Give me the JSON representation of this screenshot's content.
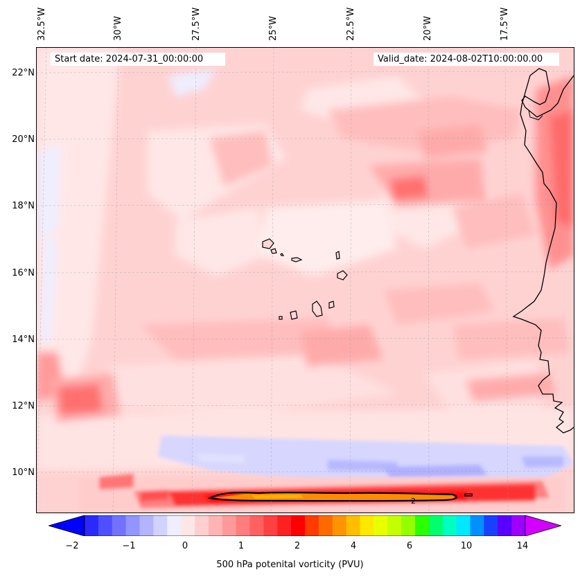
{
  "map": {
    "start_date": "Start date: 2024-07-31_00:00:00",
    "valid_date": "Valid_date: 2024-08-02T10:00:00.00",
    "longitude_labels": [
      "32.5°W",
      "30°W",
      "27.5°W",
      "25°W",
      "22.5°W",
      "20°W",
      "17.5°W"
    ],
    "latitude_labels": [
      "22°N",
      "20°N",
      "18°N",
      "16°N",
      "14°N",
      "12°N",
      "10°N"
    ],
    "contour_label": "2"
  },
  "colorbar": {
    "label": "500 hPa potenital vorticity (PVU)",
    "tick_labels": [
      "−2",
      "−1",
      "0",
      "1",
      "2",
      "4",
      "6",
      "10",
      "14"
    ],
    "colors": [
      "#0000ff",
      "#2a2aff",
      "#4f4fff",
      "#7272ff",
      "#9494ff",
      "#b3b3ff",
      "#d2d2ff",
      "#eeeeff",
      "#ffe6e6",
      "#ffcfcf",
      "#ffb4b4",
      "#ff9999",
      "#ff7d7d",
      "#ff6060",
      "#ff4040",
      "#ff2020",
      "#ff0000",
      "#ff3b00",
      "#ff6a00",
      "#ff9400",
      "#ffbe00",
      "#ffe800",
      "#e8ff00",
      "#c4ff00",
      "#94ff00",
      "#2cff00",
      "#00ff6a",
      "#00ffc0",
      "#00e8ff",
      "#0090ff",
      "#1a40ff",
      "#5a00ff",
      "#9d00ff",
      "#d400ff"
    ]
  }
}
